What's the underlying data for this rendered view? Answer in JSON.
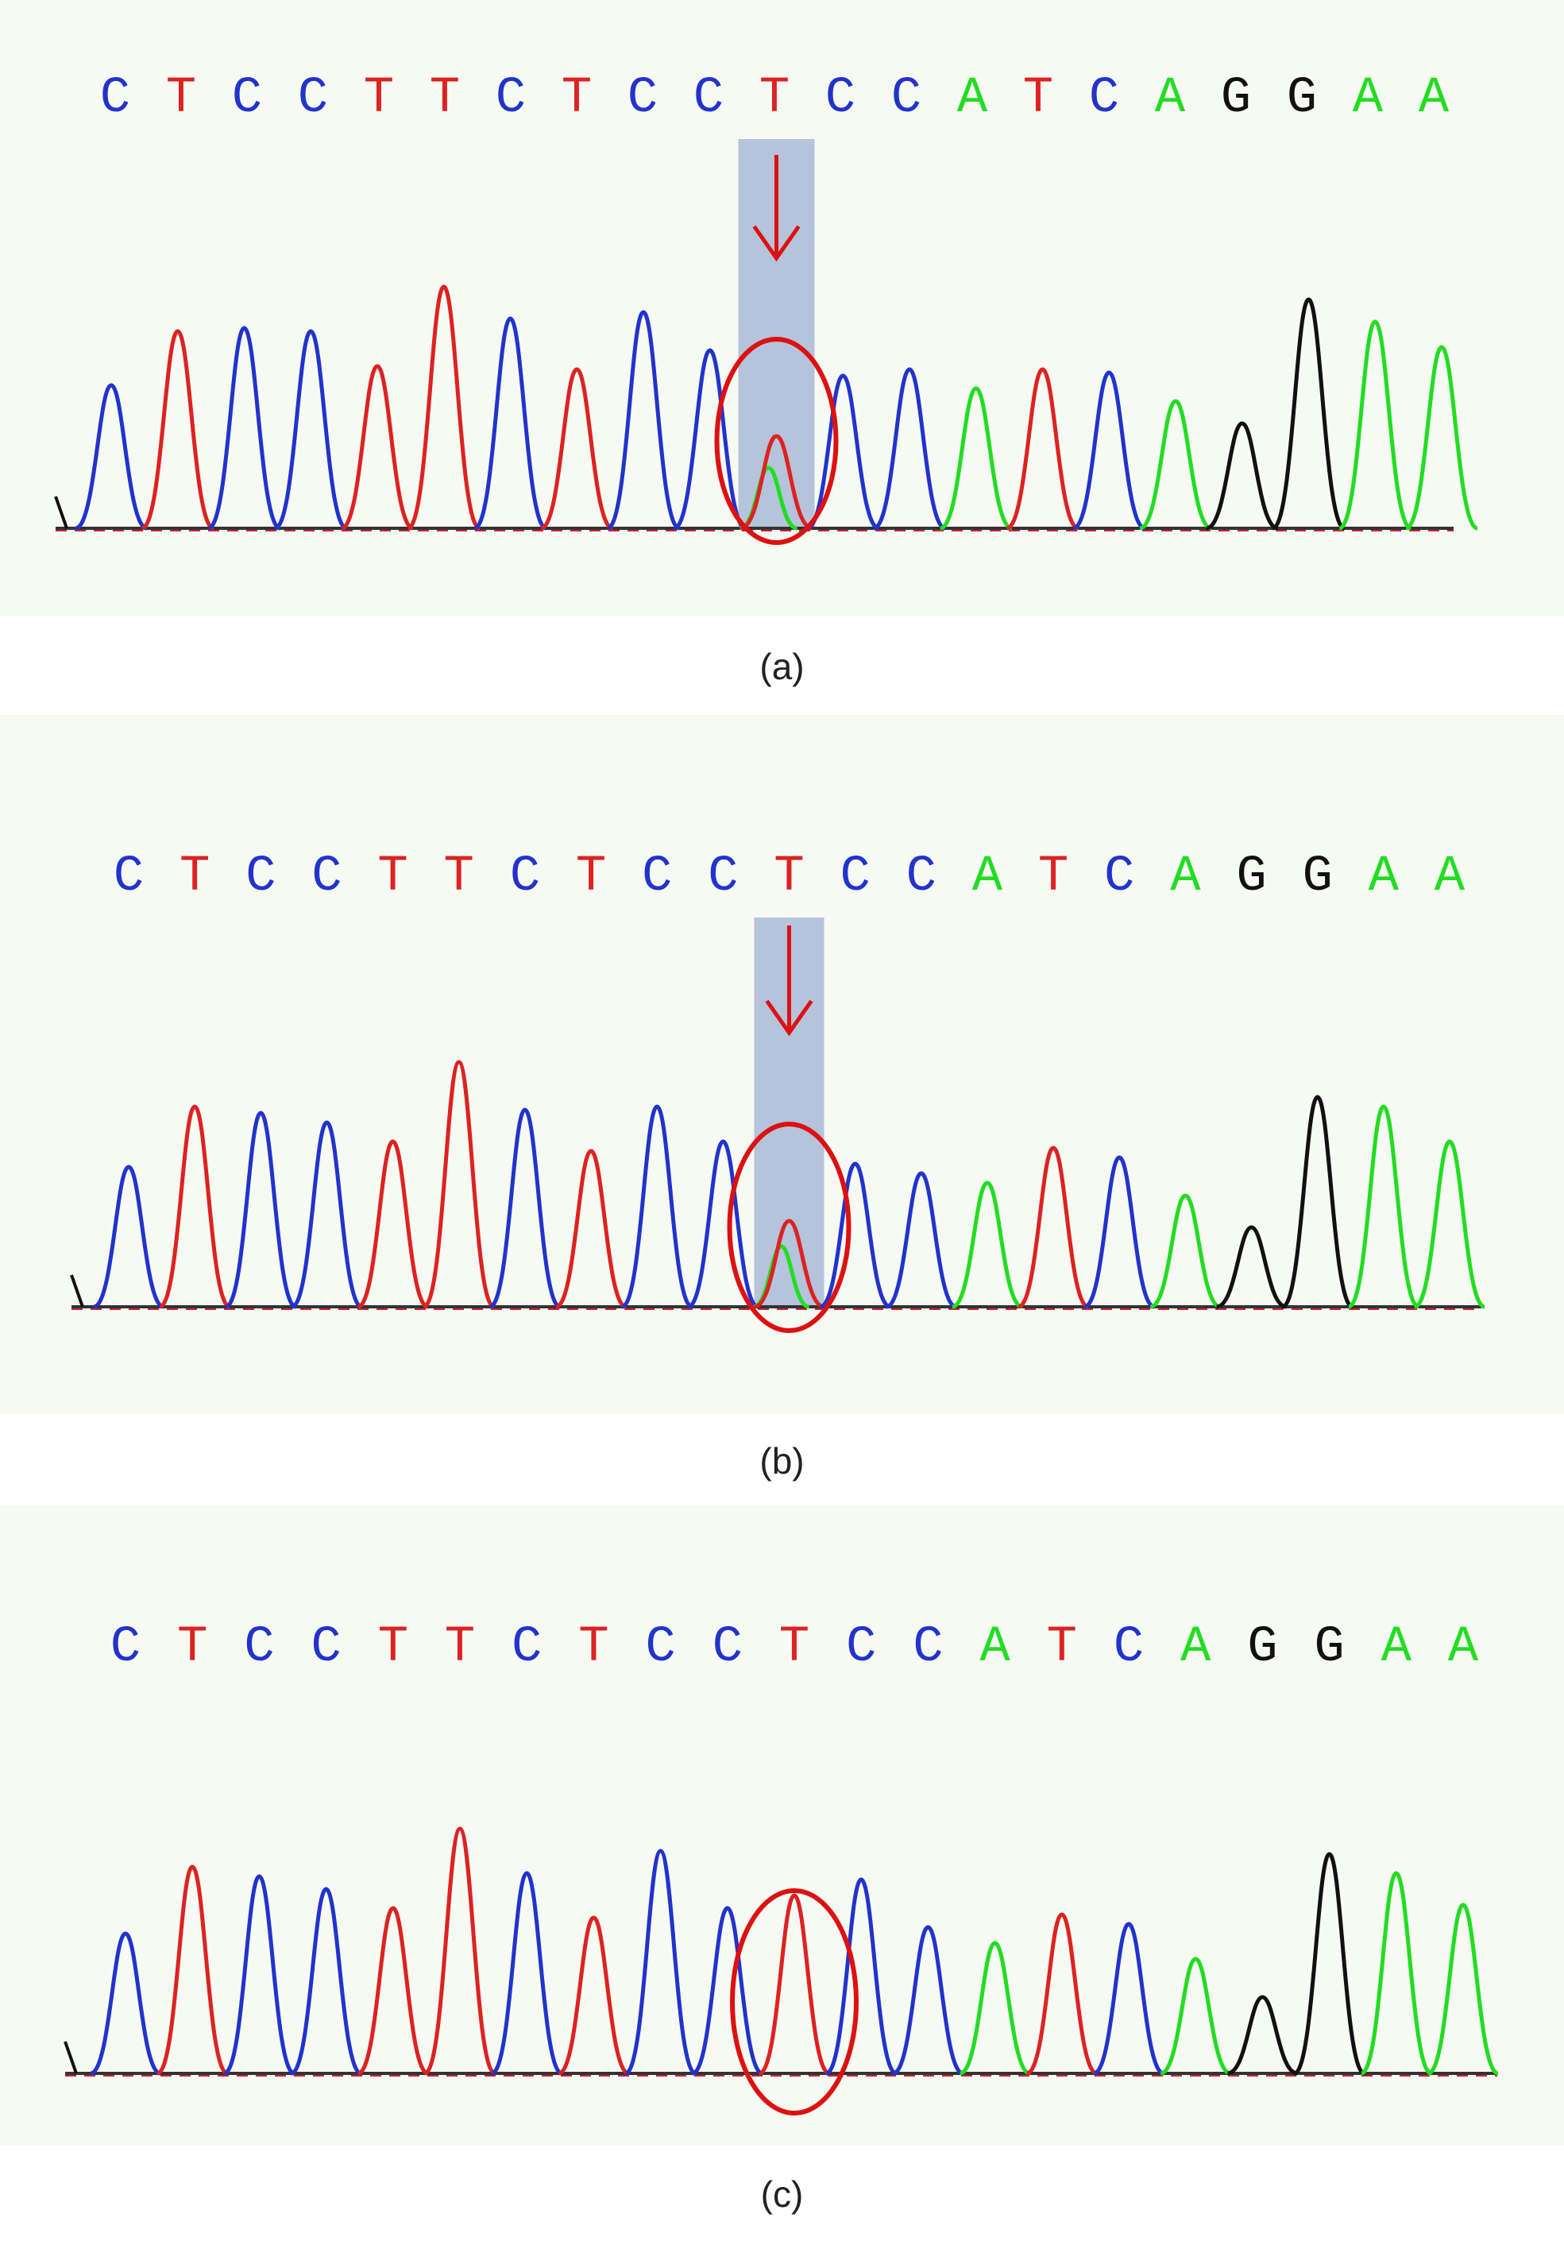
{
  "figure": {
    "base_colors": {
      "A": "#22dd22",
      "C": "#2233cc",
      "G": "#111111",
      "T": "#dd2222"
    },
    "panels": [
      {
        "id": "a",
        "caption": "(a)",
        "sequence": [
          "C",
          "T",
          "C",
          "C",
          "T",
          "T",
          "C",
          "T",
          "C",
          "C",
          "T",
          "C",
          "C",
          "A",
          "T",
          "C",
          "A",
          "G",
          "G",
          "A",
          "A"
        ],
        "highlight_index": 10,
        "shaded_highlight": true,
        "arrow": true,
        "peaks": [
          {
            "base": "C",
            "height": 0.45
          },
          {
            "base": "T",
            "height": 0.62
          },
          {
            "base": "C",
            "height": 0.63
          },
          {
            "base": "C",
            "height": 0.62
          },
          {
            "base": "T",
            "height": 0.51
          },
          {
            "base": "T",
            "height": 0.76
          },
          {
            "base": "C",
            "height": 0.66
          },
          {
            "base": "T",
            "height": 0.5
          },
          {
            "base": "C",
            "height": 0.68
          },
          {
            "base": "C",
            "height": 0.56
          },
          {
            "base": "T",
            "height": 0.29,
            "overlay": {
              "base": "A",
              "height": 0.19
            }
          },
          {
            "base": "C",
            "height": 0.48
          },
          {
            "base": "C",
            "height": 0.5
          },
          {
            "base": "A",
            "height": 0.44
          },
          {
            "base": "T",
            "height": 0.5
          },
          {
            "base": "C",
            "height": 0.49
          },
          {
            "base": "A",
            "height": 0.4
          },
          {
            "base": "G",
            "height": 0.33
          },
          {
            "base": "G",
            "height": 0.72
          },
          {
            "base": "A",
            "height": 0.65
          },
          {
            "base": "A",
            "height": 0.57
          }
        ]
      },
      {
        "id": "b",
        "caption": "(b)",
        "sequence": [
          "C",
          "T",
          "C",
          "C",
          "T",
          "T",
          "C",
          "T",
          "C",
          "C",
          "T",
          "C",
          "C",
          "A",
          "T",
          "C",
          "A",
          "G",
          "G",
          "A",
          "A"
        ],
        "highlight_index": 10,
        "shaded_highlight": true,
        "arrow": true,
        "peaks": [
          {
            "base": "C",
            "height": 0.44
          },
          {
            "base": "T",
            "height": 0.63
          },
          {
            "base": "C",
            "height": 0.61
          },
          {
            "base": "C",
            "height": 0.58
          },
          {
            "base": "T",
            "height": 0.52
          },
          {
            "base": "T",
            "height": 0.77
          },
          {
            "base": "C",
            "height": 0.62
          },
          {
            "base": "T",
            "height": 0.49
          },
          {
            "base": "C",
            "height": 0.63
          },
          {
            "base": "C",
            "height": 0.52
          },
          {
            "base": "T",
            "height": 0.27,
            "overlay": {
              "base": "A",
              "height": 0.19
            }
          },
          {
            "base": "C",
            "height": 0.45
          },
          {
            "base": "C",
            "height": 0.42
          },
          {
            "base": "A",
            "height": 0.39
          },
          {
            "base": "T",
            "height": 0.5
          },
          {
            "base": "C",
            "height": 0.47
          },
          {
            "base": "A",
            "height": 0.35
          },
          {
            "base": "G",
            "height": 0.25
          },
          {
            "base": "G",
            "height": 0.66
          },
          {
            "base": "A",
            "height": 0.63
          },
          {
            "base": "A",
            "height": 0.52
          }
        ]
      },
      {
        "id": "c",
        "caption": "(c)",
        "sequence": [
          "C",
          "T",
          "C",
          "C",
          "T",
          "T",
          "C",
          "T",
          "C",
          "C",
          "T",
          "C",
          "C",
          "A",
          "T",
          "C",
          "A",
          "G",
          "G",
          "A",
          "A"
        ],
        "highlight_index": 10,
        "shaded_highlight": false,
        "arrow": false,
        "peaks": [
          {
            "base": "C",
            "height": 0.44
          },
          {
            "base": "T",
            "height": 0.65
          },
          {
            "base": "C",
            "height": 0.62
          },
          {
            "base": "C",
            "height": 0.58
          },
          {
            "base": "T",
            "height": 0.52
          },
          {
            "base": "T",
            "height": 0.77
          },
          {
            "base": "C",
            "height": 0.63
          },
          {
            "base": "T",
            "height": 0.49
          },
          {
            "base": "C",
            "height": 0.7
          },
          {
            "base": "C",
            "height": 0.52
          },
          {
            "base": "T",
            "height": 0.56
          },
          {
            "base": "C",
            "height": 0.61
          },
          {
            "base": "C",
            "height": 0.46
          },
          {
            "base": "A",
            "height": 0.41
          },
          {
            "base": "T",
            "height": 0.5
          },
          {
            "base": "C",
            "height": 0.47
          },
          {
            "base": "A",
            "height": 0.36
          },
          {
            "base": "G",
            "height": 0.24
          },
          {
            "base": "G",
            "height": 0.69
          },
          {
            "base": "A",
            "height": 0.63
          },
          {
            "base": "A",
            "height": 0.53
          }
        ]
      }
    ]
  }
}
